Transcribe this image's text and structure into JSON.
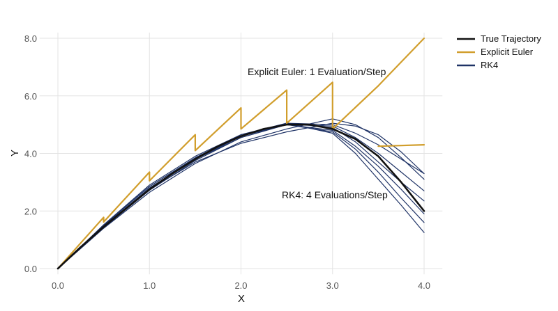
{
  "chart_data": {
    "type": "line",
    "xlabel": "X",
    "ylabel": "Y",
    "xlim": [
      -0.2,
      4.2
    ],
    "ylim": [
      -0.2,
      8.2
    ],
    "xticks": [
      0,
      1,
      2,
      3,
      4
    ],
    "xtick_labels": [
      "0.0",
      "1.0",
      "2.0",
      "3.0",
      "4.0"
    ],
    "yticks": [
      0,
      2,
      4,
      6,
      8
    ],
    "ytick_labels": [
      "0.0",
      "2.0",
      "4.0",
      "6.0",
      "8.0"
    ],
    "grid": true,
    "legend_position": "top-right",
    "annotations": [
      {
        "text": "Explicit Euler: 1 Evaluation/Step",
        "x": 2.05,
        "y": 6.75
      },
      {
        "text": "RK4: 4 Evaluations/Step",
        "x": 2.45,
        "y": 2.45
      }
    ],
    "series": [
      {
        "name": "True Trajectory",
        "color": "#111111",
        "role": "true",
        "x": [
          0,
          0.25,
          0.5,
          0.75,
          1.0,
          1.25,
          1.5,
          1.75,
          2.0,
          2.25,
          2.5,
          2.75,
          3.0,
          3.25,
          3.5,
          3.75,
          4.0
        ],
        "y": [
          0,
          0.75,
          1.45,
          2.1,
          2.75,
          3.3,
          3.8,
          4.25,
          4.6,
          4.85,
          5.0,
          5.0,
          4.85,
          4.5,
          3.9,
          3.0,
          2.0
        ]
      },
      {
        "name": "Explicit Euler",
        "color": "#D19E2C",
        "role": "euler",
        "x": [
          0,
          0.5,
          0.5,
          1.0,
          1.0,
          1.5,
          1.5,
          2.0,
          2.0,
          2.5,
          2.5,
          3.0,
          3.0,
          3.5,
          4.0
        ],
        "y": [
          0,
          1.78,
          1.62,
          3.35,
          3.05,
          4.65,
          4.1,
          5.58,
          4.85,
          6.2,
          5.05,
          6.47,
          4.85,
          6.35,
          8.0
        ]
      },
      {
        "name": "",
        "color": "#D19E2C",
        "role": "euler-extra",
        "x": [
          3.5,
          4.0
        ],
        "y": [
          4.25,
          4.3
        ]
      },
      {
        "name": "RK4",
        "color": "#1F3366",
        "role": "rk4",
        "x": [
          0,
          0.5,
          1.0,
          1.5,
          2.0,
          2.5,
          3.0,
          3.25,
          3.5,
          3.75,
          4.0
        ],
        "y": [
          0,
          1.5,
          2.85,
          3.85,
          4.65,
          5.05,
          5.0,
          4.7,
          4.3,
          3.8,
          3.3
        ]
      },
      {
        "name": "",
        "color": "#1F3366",
        "role": "rk4",
        "x": [
          0,
          0.5,
          1.0,
          1.5,
          2.0,
          2.5,
          3.0,
          3.25,
          3.5,
          3.75,
          4.0
        ],
        "y": [
          0,
          1.42,
          2.72,
          3.75,
          4.55,
          5.0,
          4.95,
          4.55,
          4.0,
          3.35,
          2.7
        ]
      },
      {
        "name": "",
        "color": "#1F3366",
        "role": "rk4",
        "x": [
          0,
          0.5,
          1.0,
          1.5,
          2.0,
          2.5,
          3.0,
          3.25,
          3.5,
          3.75,
          4.0
        ],
        "y": [
          0,
          1.45,
          2.8,
          3.8,
          4.6,
          5.05,
          4.9,
          4.4,
          3.7,
          3.0,
          2.35
        ]
      },
      {
        "name": "",
        "color": "#1F3366",
        "role": "rk4",
        "x": [
          0,
          0.5,
          1.0,
          1.5,
          2.0,
          2.5,
          3.0,
          3.25,
          3.5,
          3.75,
          4.0
        ],
        "y": [
          0,
          1.48,
          2.78,
          3.8,
          4.55,
          5.0,
          4.8,
          4.25,
          3.55,
          2.75,
          1.9
        ]
      },
      {
        "name": "",
        "color": "#1F3366",
        "role": "rk4",
        "x": [
          0,
          0.5,
          1.0,
          1.5,
          2.0,
          2.5,
          3.0,
          3.25,
          3.5,
          3.75,
          4.0
        ],
        "y": [
          0,
          1.5,
          2.85,
          3.85,
          4.6,
          5.0,
          4.75,
          4.15,
          3.35,
          2.45,
          1.6
        ]
      },
      {
        "name": "",
        "color": "#1F3366",
        "role": "rk4",
        "x": [
          0,
          0.5,
          1.0,
          1.5,
          2.0,
          2.5,
          3.0,
          3.25,
          3.5,
          3.75,
          4.0
        ],
        "y": [
          0,
          1.52,
          2.9,
          3.9,
          4.65,
          5.05,
          4.7,
          4.0,
          3.1,
          2.2,
          1.25
        ]
      },
      {
        "name": "",
        "color": "#1F3366",
        "role": "rk4",
        "x": [
          0,
          0.5,
          1.0,
          1.5,
          2.0,
          2.5,
          3.0,
          3.25,
          3.5,
          3.75,
          4.0
        ],
        "y": [
          0,
          1.4,
          2.65,
          3.65,
          4.4,
          4.85,
          5.2,
          5.0,
          4.55,
          3.85,
          3.1
        ]
      },
      {
        "name": "",
        "color": "#1F3366",
        "role": "rk4",
        "x": [
          0,
          0.5,
          1.0,
          1.5,
          2.0,
          2.5,
          3.0,
          3.25,
          3.5,
          3.75,
          4.0
        ],
        "y": [
          0,
          1.45,
          2.75,
          3.7,
          4.35,
          4.75,
          5.05,
          4.95,
          4.65,
          4.05,
          3.3
        ]
      }
    ],
    "legend": [
      {
        "label": "True Trajectory",
        "color": "#111111"
      },
      {
        "label": "Explicit Euler",
        "color": "#D19E2C"
      },
      {
        "label": "RK4",
        "color": "#1F3366"
      }
    ]
  }
}
